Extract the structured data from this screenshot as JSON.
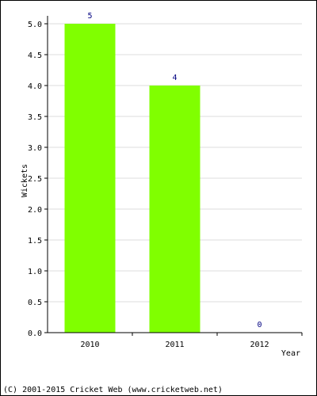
{
  "chart_data": {
    "type": "bar",
    "categories": [
      "2010",
      "2011",
      "2012"
    ],
    "values": [
      5,
      4,
      0
    ],
    "value_labels": [
      "5",
      "4",
      "0"
    ],
    "title": "",
    "xlabel": "Year",
    "ylabel": "Wickets",
    "ylim": [
      0,
      5.0
    ],
    "yticks": [
      "0.0",
      "0.5",
      "1.0",
      "1.5",
      "2.0",
      "2.5",
      "3.0",
      "3.5",
      "4.0",
      "4.5",
      "5.0"
    ],
    "grid": true,
    "legend": "none",
    "colors": {
      "bar": "#80ff00",
      "value_label": "#000080",
      "grid": "#dddddd"
    }
  },
  "footer": {
    "copyright": "(C) 2001-2015 Cricket Web (www.cricketweb.net)"
  }
}
